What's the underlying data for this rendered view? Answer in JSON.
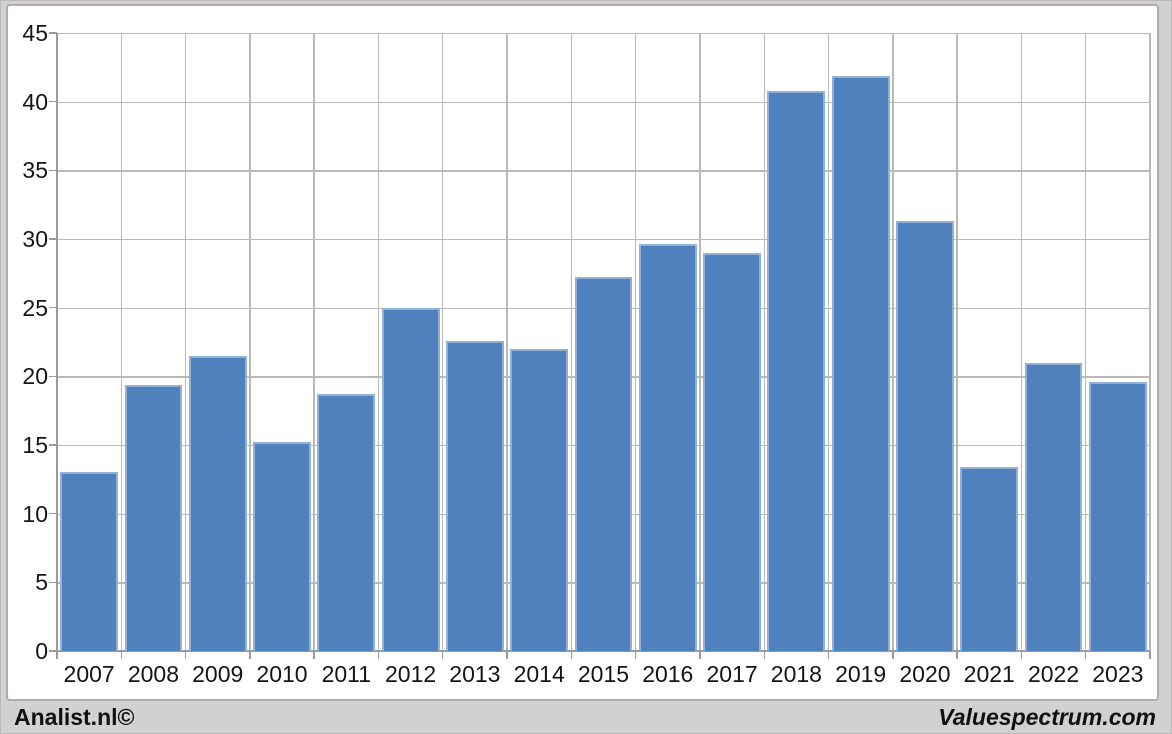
{
  "chart_data": {
    "type": "bar",
    "title": "",
    "xlabel": "",
    "ylabel": "",
    "categories": [
      "2007",
      "2008",
      "2009",
      "2010",
      "2011",
      "2012",
      "2013",
      "2014",
      "2015",
      "2016",
      "2017",
      "2018",
      "2019",
      "2020",
      "2021",
      "2022",
      "2023"
    ],
    "values": [
      13.0,
      19.4,
      21.5,
      15.2,
      18.7,
      25.0,
      22.6,
      22.0,
      27.2,
      29.6,
      29.0,
      40.8,
      41.9,
      31.3,
      13.4,
      21.0,
      19.6
    ],
    "ylim": [
      0,
      45
    ],
    "ytick_step": 5,
    "ytick_labels": [
      "0",
      "5",
      "10",
      "15",
      "20",
      "25",
      "30",
      "35",
      "40",
      "45"
    ],
    "grid": true,
    "legend": "none",
    "colors": {
      "bar_fill": "#4f81bd",
      "bar_border": "#93b1d7",
      "gridline": "#b9b9b9",
      "axis": "#9a9a9a",
      "text": "#151515",
      "frame_background": "#d2d0d0",
      "panel_background": "#ffffff"
    }
  },
  "footer": {
    "left": "Analist.nl©",
    "right": "Valuespectrum.com"
  }
}
